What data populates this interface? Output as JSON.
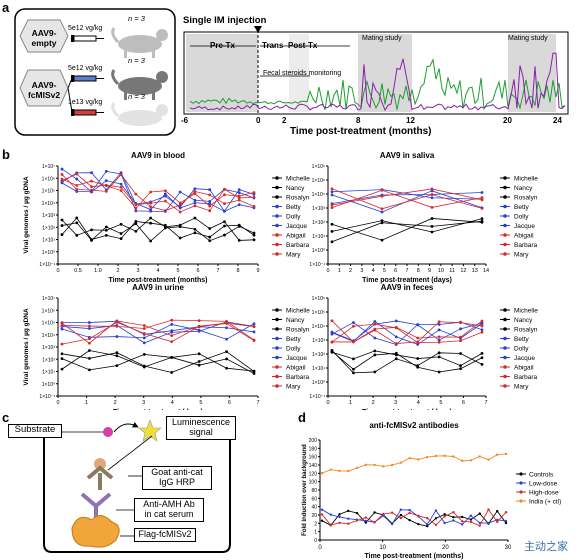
{
  "panels": {
    "a": "a",
    "b": "b",
    "c": "c",
    "d": "d"
  },
  "panel_a": {
    "groups": [
      {
        "name": "AAV9-\nempty",
        "dose": "5e12 vg/kg",
        "n": "n = 3"
      },
      {
        "name": "AAV9-\nfcMISv2",
        "dose": "5e12 vg/kg",
        "n": "n = 3"
      },
      {
        "name": "",
        "dose": "1e13 vg/kg",
        "n": "n = 3"
      }
    ],
    "timeline": {
      "injection_label": "Single IM injection",
      "phases": [
        "Pre-Tx",
        "Trans",
        "Post-Tx"
      ],
      "mating": [
        "Mating study",
        "Mating study"
      ],
      "fecal": "Fecal steroids monitoring",
      "ticks": [
        "-6",
        "0",
        "2",
        "8",
        "12",
        "20",
        "24"
      ],
      "xlabel": "Time post-treatment (months)",
      "colors": {
        "green": "#1e9e2f",
        "purple": "#8b1fa8"
      }
    }
  },
  "chart_data": [
    {
      "type": "line",
      "title": "AAV9 in blood",
      "xlabel": "Time post-treatment (months)",
      "ylabel": "Viral genomes / µg gDNA",
      "xticks": [
        "0",
        "0.5",
        "1.0",
        "2",
        "3",
        "4",
        "5",
        "6",
        "7",
        "8",
        "9"
      ],
      "yticks": [
        "1×10⁻¹",
        "1×10⁰",
        "1×10¹",
        "1×10²",
        "1×10³",
        "1×10⁴",
        "1×10⁵",
        "1×10⁶",
        "1×10⁷"
      ],
      "legend": [
        "Michelle",
        "Nancy",
        "Rosalyn",
        "Betty",
        "Dolly",
        "Jacque",
        "Abigail",
        "Barbara",
        "Mary"
      ]
    },
    {
      "type": "line",
      "title": "AAV9 in saliva",
      "xlabel": "Time post-treatment (days)",
      "ylabel": "",
      "xticks": [
        "0",
        "1",
        "2",
        "3",
        "4",
        "5",
        "6",
        "7",
        "8",
        "9",
        "10",
        "11",
        "12",
        "13",
        "14"
      ],
      "yticks": [
        "1×10⁻¹",
        "1×10⁰",
        "1×10¹",
        "1×10²",
        "1×10³",
        "1×10⁴",
        "1×10⁵",
        "1×10⁶"
      ],
      "legend": [
        "Michelle",
        "Nancy",
        "Rosalyn",
        "Betty",
        "Dolly",
        "Jacque",
        "Abigail",
        "Barbara",
        "Mary"
      ]
    },
    {
      "type": "line",
      "title": "AAV9 in urine",
      "xlabel": "Time post-treatment (days)",
      "ylabel": "Viral genomes / µg gDNA",
      "xticks": [
        "0",
        "1",
        "2",
        "3",
        "4",
        "5",
        "6",
        "7"
      ],
      "yticks": [
        "1×10⁻¹",
        "1×10⁰",
        "1×10¹",
        "1×10²",
        "1×10³",
        "1×10⁴",
        "1×10⁵",
        "1×10⁶",
        "1×10⁷"
      ],
      "legend": [
        "Michelle",
        "Nancy",
        "Rosalyn",
        "Betty",
        "Dolly",
        "Jacque",
        "Abigail",
        "Barbara",
        "Mary"
      ]
    },
    {
      "type": "line",
      "title": "AAV9 in feces",
      "xlabel": "Time post-treatment (days)",
      "ylabel": "",
      "xticks": [
        "0",
        "1",
        "2",
        "3",
        "4",
        "5",
        "6",
        "7"
      ],
      "yticks": [
        "1×10⁻¹",
        "1×10⁰",
        "1×10¹",
        "1×10²",
        "1×10³",
        "1×10⁴",
        "1×10⁵",
        "1×10⁶"
      ],
      "legend": [
        "Michelle",
        "Nancy",
        "Rosalyn",
        "Betty",
        "Dolly",
        "Jacque",
        "Abigail",
        "Barbara",
        "Mary"
      ]
    },
    {
      "type": "line",
      "title": "anti-fcMISv2 antibodies",
      "xlabel": "Time post-treatment (months)",
      "ylabel": "Fold induction over background",
      "xticks": [
        "0",
        "10",
        "20",
        "30"
      ],
      "yticks": [
        "0",
        "1",
        "2",
        "20",
        "40",
        "60",
        "80",
        "100",
        "120",
        "140",
        "160",
        "180",
        "200"
      ],
      "legend": [
        "Controls",
        "Low-dose",
        "High-dose",
        "India (+ ctl)"
      ]
    }
  ],
  "panel_c": {
    "substrate": "Substrate",
    "lum": "Luminescence\nsignal",
    "goat": "Goat anti-cat\nIgG HRP",
    "amh": "Anti-AMH Ab\nin cat serum",
    "flag": "Flag-fcMISv2"
  },
  "watermark": "主动之家"
}
